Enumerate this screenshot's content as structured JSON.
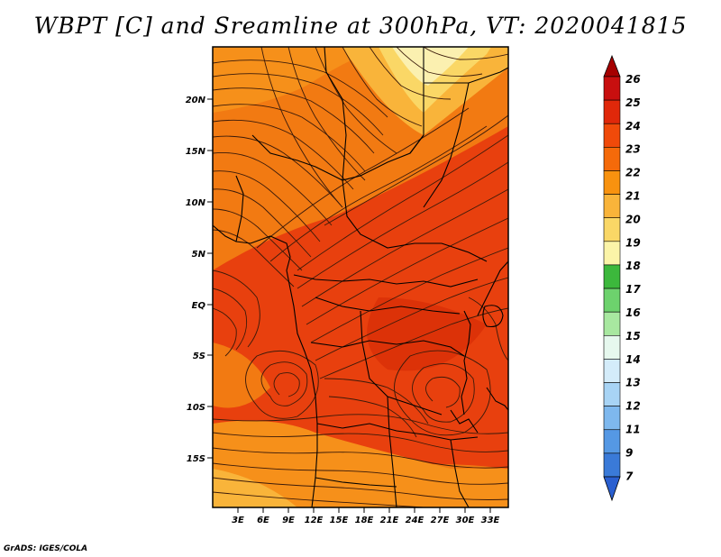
{
  "title": "WBPT [C] and Sreamline at 300hPa, VT: 2020041815",
  "footer": "GrADS: IGES/COLA",
  "lat_labels": [
    "20N",
    "15N",
    "10N",
    "5N",
    "EQ",
    "5S",
    "10S",
    "15S"
  ],
  "lon_labels": [
    "3E",
    "6E",
    "9E",
    "12E",
    "15E",
    "18E",
    "21E",
    "24E",
    "27E",
    "30E",
    "33E"
  ],
  "colorbar": {
    "labels": [
      "26",
      "25",
      "24",
      "23",
      "22",
      "21",
      "20",
      "19",
      "18",
      "17",
      "16",
      "15",
      "14",
      "13",
      "12",
      "11",
      "9",
      "7"
    ],
    "colors": [
      "#a50000",
      "#c80f0f",
      "#e0280a",
      "#f04a0a",
      "#f56a0a",
      "#f8920f",
      "#f9b43a",
      "#fad766",
      "#fbf4a8",
      "#3cb83c",
      "#6dd26d",
      "#a8e8a0",
      "#e6f8ee",
      "#d4ecfa",
      "#a8d4f5",
      "#7eb8ee",
      "#5598e4",
      "#3a7ad8",
      "#2a5fd0"
    ]
  },
  "colors": {
    "warm_fill": "#e8400e",
    "mid_fill": "#f27a12",
    "cool_fill": "#f8a82a",
    "pale_fill": "#fbe39a",
    "streamline": "#3a1a0a",
    "border": "#000000"
  }
}
